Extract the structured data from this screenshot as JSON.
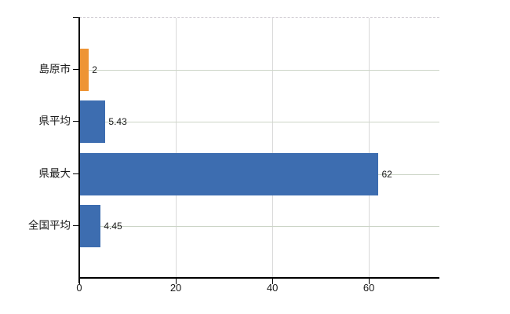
{
  "chart_data": {
    "type": "bar",
    "orientation": "horizontal",
    "title": "",
    "xlabel": "",
    "ylabel": "",
    "categories": [
      "島原市",
      "県平均",
      "県最大",
      "全国平均"
    ],
    "values": [
      2,
      5.43,
      62,
      4.45
    ],
    "value_labels": [
      "2",
      "5.43",
      "62",
      "4.45"
    ],
    "x_ticks": [
      0,
      20,
      40,
      60
    ],
    "x_tick_labels": [
      "0",
      "20",
      "40",
      "60"
    ],
    "xlim": [
      0,
      74.6
    ],
    "grid": true,
    "legend_position": "none",
    "colors": {
      "bars": [
        "#ee9434",
        "#3d6db0",
        "#3d6db0",
        "#3d6db0"
      ],
      "axis": "#000000",
      "tick_label": "#1a1a1a",
      "value_label": "#1a1a1a",
      "vertical_grid": "#d9d9d9",
      "horizontal_grid": "#ccd5c7",
      "top_border_dashed": "#cfcbd2",
      "background": "#ffffff"
    }
  }
}
